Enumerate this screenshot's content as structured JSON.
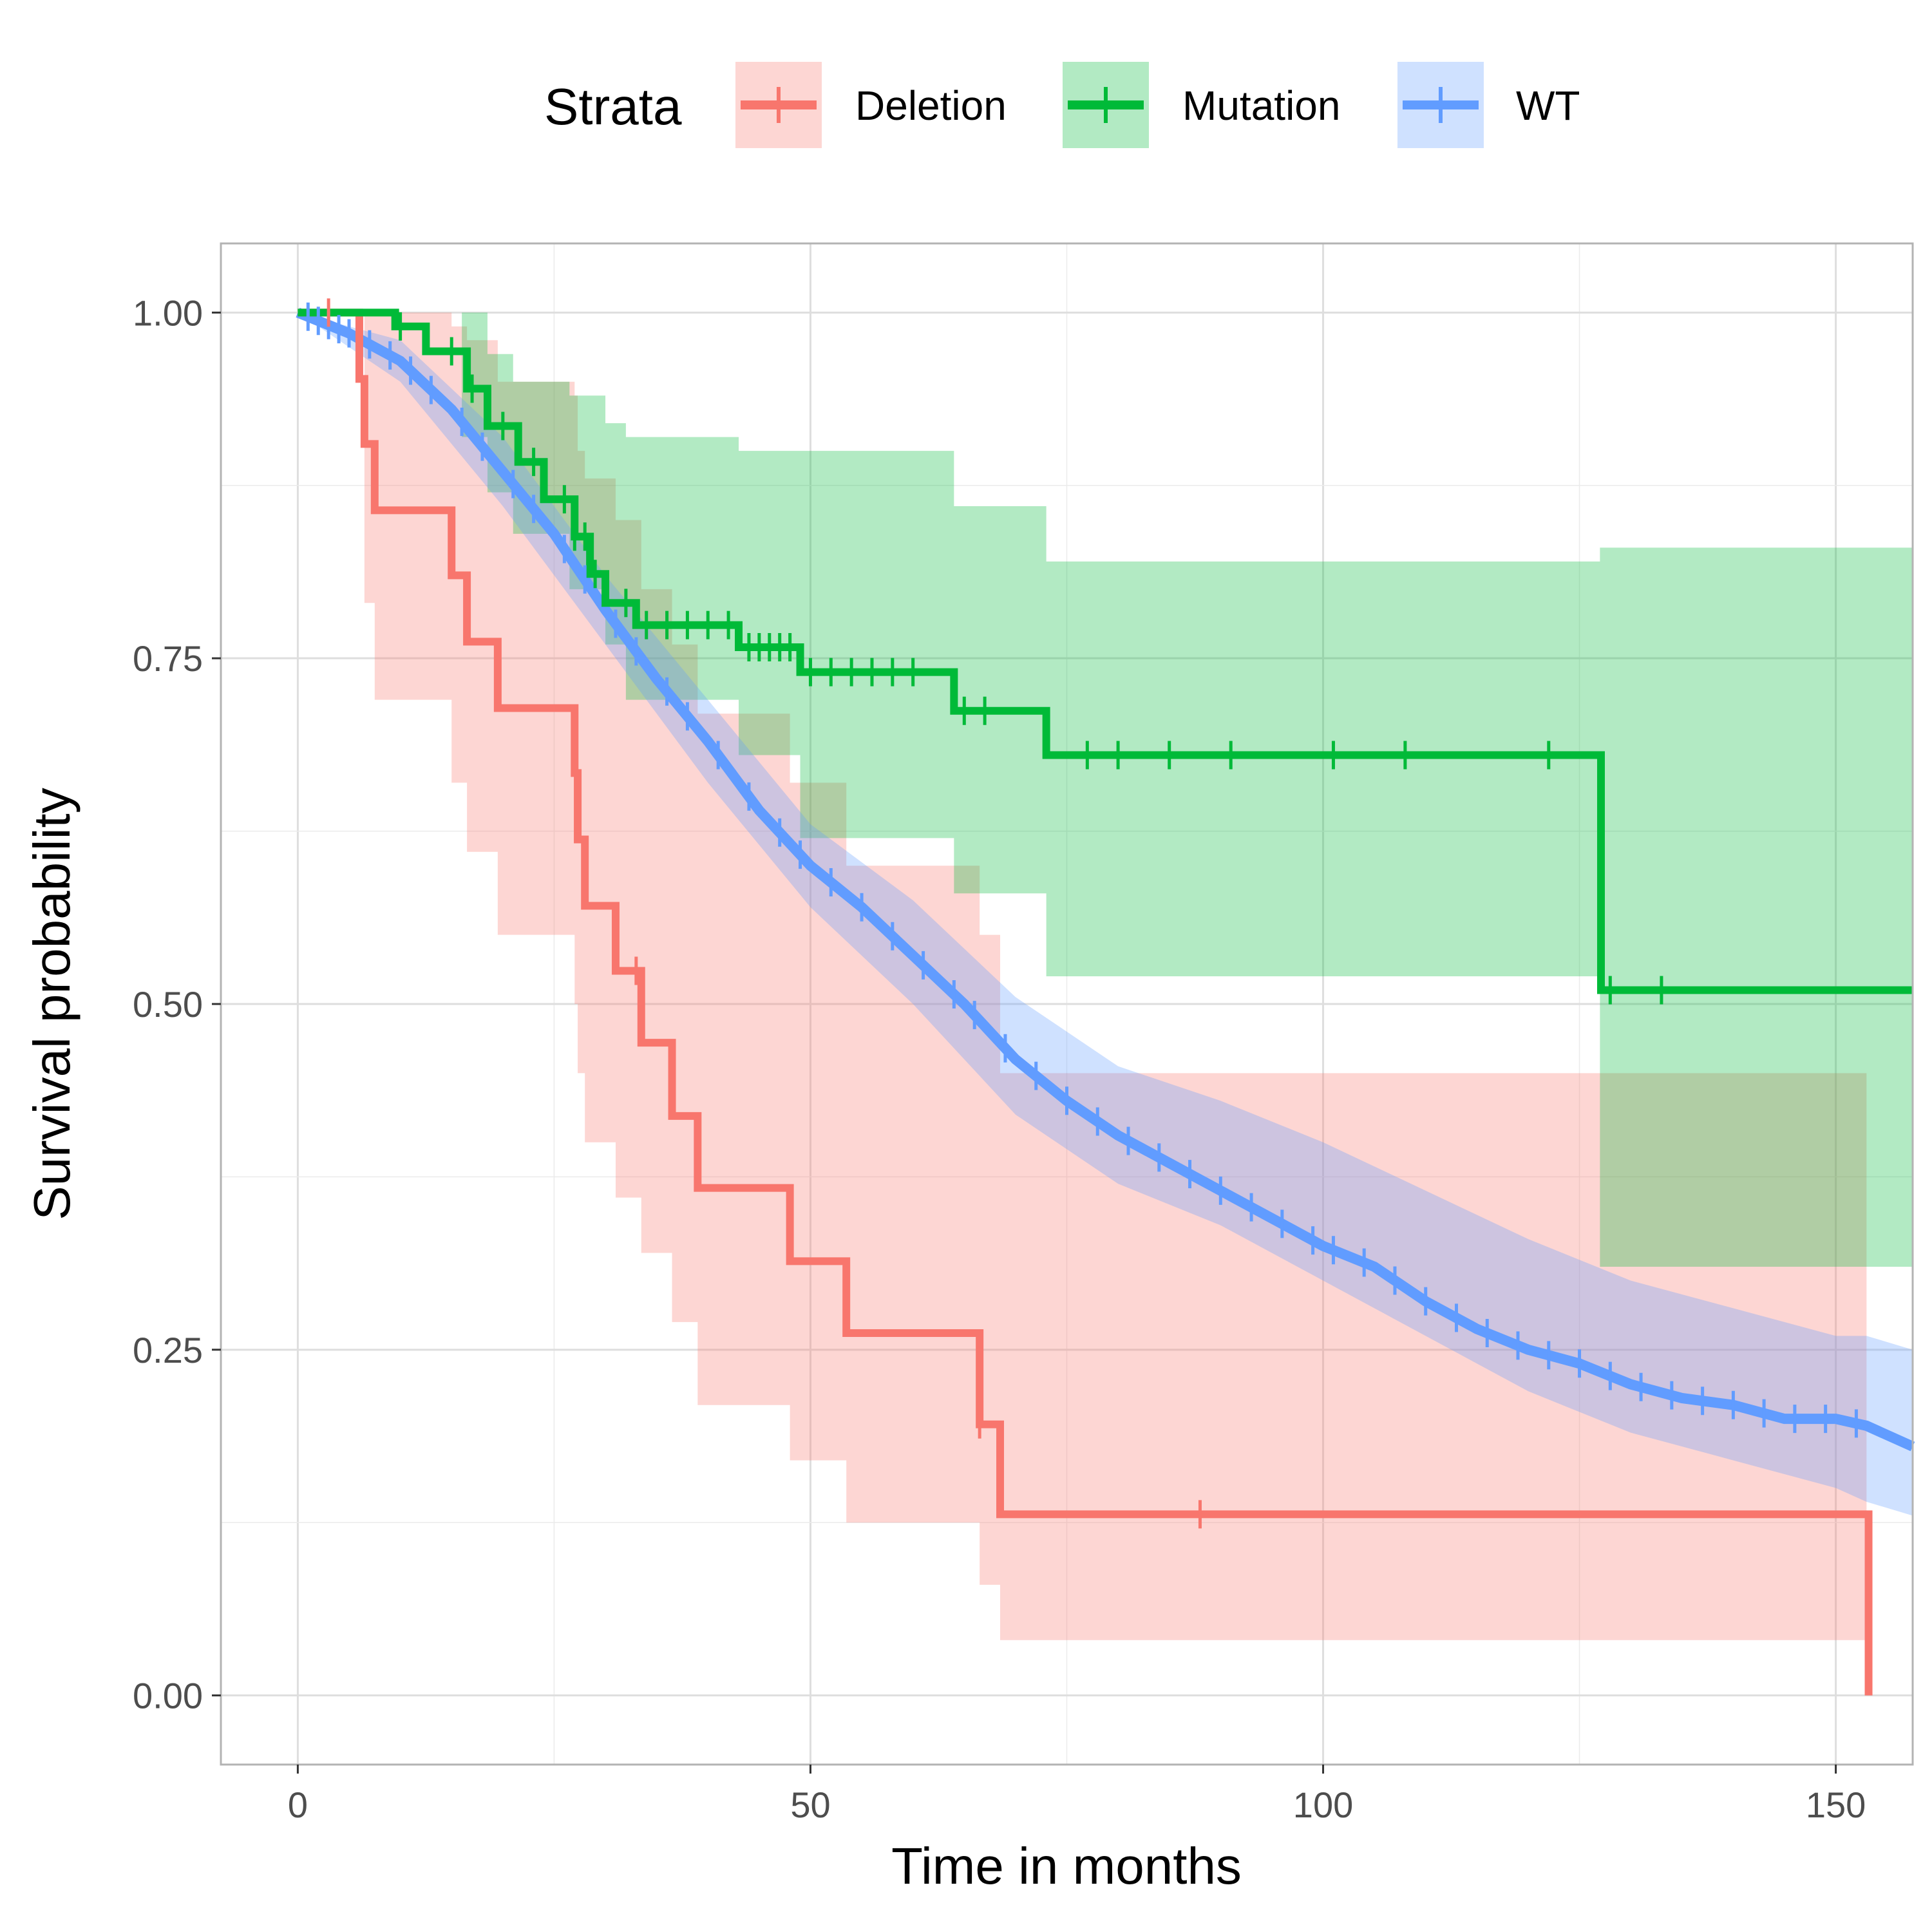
{
  "chart_data": {
    "type": "line",
    "subtype": "kaplan-meier-survival",
    "xlabel": "Time in months",
    "ylabel": "Survival probability",
    "xlim": [
      -7.5,
      157.5
    ],
    "ylim": [
      -0.05,
      1.05
    ],
    "x_ticks": [
      0,
      50,
      100,
      150
    ],
    "x_tick_labels": [
      "0",
      "50",
      "100",
      "150"
    ],
    "y_ticks": [
      0,
      0.25,
      0.5,
      0.75,
      1.0
    ],
    "y_tick_labels": [
      "0.00",
      "0.25",
      "0.50",
      "0.75",
      "1.00"
    ],
    "grid": true,
    "legend": {
      "title": "Strata",
      "position": "top",
      "entries": [
        "Deletion",
        "Mutation",
        "WT"
      ]
    },
    "series": [
      {
        "name": "Deletion",
        "color": "#F8766D",
        "steps": [
          [
            0,
            1.0
          ],
          [
            6,
            0.952
          ],
          [
            6.5,
            0.905
          ],
          [
            7.5,
            0.857
          ],
          [
            15,
            0.81
          ],
          [
            16.5,
            0.762
          ],
          [
            19.5,
            0.714
          ],
          [
            27,
            0.667
          ],
          [
            27.3,
            0.619
          ],
          [
            28,
            0.571
          ],
          [
            31,
            0.524
          ],
          [
            33.5,
            0.472
          ],
          [
            36.5,
            0.419
          ],
          [
            39,
            0.367
          ],
          [
            48,
            0.314
          ],
          [
            53.5,
            0.262
          ],
          [
            66.5,
            0.196
          ],
          [
            68.5,
            0.131
          ],
          [
            153,
            0.131
          ],
          [
            153.2,
            0.0
          ]
        ],
        "ci_upper": [
          [
            0,
            1.0
          ],
          [
            6.5,
            1.0
          ],
          [
            7.5,
            1.0
          ],
          [
            15,
            0.99
          ],
          [
            16.5,
            0.98
          ],
          [
            19.5,
            0.95
          ],
          [
            27,
            0.94
          ],
          [
            27.3,
            0.9
          ],
          [
            28,
            0.88
          ],
          [
            31,
            0.85
          ],
          [
            33.5,
            0.8
          ],
          [
            36.5,
            0.76
          ],
          [
            39,
            0.71
          ],
          [
            48,
            0.66
          ],
          [
            53.5,
            0.6
          ],
          [
            66.5,
            0.55
          ],
          [
            68.5,
            0.45
          ],
          [
            153,
            0.45
          ]
        ],
        "ci_lower": [
          [
            0,
            1.0
          ],
          [
            6.5,
            0.79
          ],
          [
            7.5,
            0.72
          ],
          [
            15,
            0.66
          ],
          [
            16.5,
            0.61
          ],
          [
            19.5,
            0.55
          ],
          [
            27,
            0.5
          ],
          [
            27.3,
            0.45
          ],
          [
            28,
            0.4
          ],
          [
            31,
            0.36
          ],
          [
            33.5,
            0.32
          ],
          [
            36.5,
            0.27
          ],
          [
            39,
            0.21
          ],
          [
            48,
            0.17
          ],
          [
            53.5,
            0.125
          ],
          [
            66.5,
            0.08
          ],
          [
            68.5,
            0.04
          ],
          [
            153,
            0.04
          ]
        ],
        "censor_times": [
          3,
          33,
          66.5,
          88
        ]
      },
      {
        "name": "Mutation",
        "color": "#00BA38",
        "steps": [
          [
            0,
            1.0
          ],
          [
            9.5,
            0.99
          ],
          [
            12.5,
            0.972
          ],
          [
            16.5,
            0.945
          ],
          [
            18.5,
            0.918
          ],
          [
            21.5,
            0.892
          ],
          [
            24,
            0.865
          ],
          [
            27,
            0.838
          ],
          [
            28.5,
            0.811
          ],
          [
            30,
            0.79
          ],
          [
            33,
            0.774
          ],
          [
            43,
            0.758
          ],
          [
            49,
            0.74
          ],
          [
            64,
            0.712
          ],
          [
            73,
            0.68
          ],
          [
            127,
            0.68
          ],
          [
            127.1,
            0.51
          ],
          [
            157.5,
            0.51
          ]
        ],
        "ci_upper": [
          [
            0,
            1.0
          ],
          [
            16,
            1.0
          ],
          [
            18.5,
            0.97
          ],
          [
            21,
            0.95
          ],
          [
            26.5,
            0.94
          ],
          [
            30,
            0.92
          ],
          [
            32,
            0.91
          ],
          [
            43,
            0.9
          ],
          [
            49,
            0.9
          ],
          [
            64,
            0.86
          ],
          [
            73,
            0.82
          ],
          [
            127,
            0.83
          ],
          [
            157.5,
            0.83
          ]
        ],
        "ci_lower": [
          [
            0,
            1.0
          ],
          [
            16,
            0.91
          ],
          [
            18.5,
            0.87
          ],
          [
            21,
            0.84
          ],
          [
            26.5,
            0.8
          ],
          [
            30,
            0.76
          ],
          [
            32,
            0.72
          ],
          [
            43,
            0.68
          ],
          [
            49,
            0.62
          ],
          [
            64,
            0.58
          ],
          [
            73,
            0.52
          ],
          [
            127,
            0.31
          ],
          [
            157.5,
            0.31
          ]
        ],
        "censor_times": [
          10,
          15,
          17,
          20,
          23,
          26,
          27,
          28,
          29,
          32,
          34,
          36,
          38,
          40,
          42,
          44,
          45,
          46,
          47,
          48,
          50,
          52,
          54,
          56,
          58,
          60,
          65,
          67,
          77,
          80,
          85,
          91,
          101,
          108,
          122,
          128,
          133
        ]
      },
      {
        "name": "WT",
        "color": "#619CFF",
        "points": [
          [
            0,
            1.0
          ],
          [
            5,
            0.985
          ],
          [
            10,
            0.965
          ],
          [
            15,
            0.93
          ],
          [
            20,
            0.885
          ],
          [
            25,
            0.84
          ],
          [
            30,
            0.785
          ],
          [
            35,
            0.735
          ],
          [
            40,
            0.69
          ],
          [
            45,
            0.64
          ],
          [
            50,
            0.6
          ],
          [
            55,
            0.57
          ],
          [
            60,
            0.535
          ],
          [
            65,
            0.5
          ],
          [
            70,
            0.46
          ],
          [
            75,
            0.43
          ],
          [
            80,
            0.405
          ],
          [
            85,
            0.385
          ],
          [
            90,
            0.365
          ],
          [
            95,
            0.345
          ],
          [
            100,
            0.325
          ],
          [
            105,
            0.31
          ],
          [
            110,
            0.285
          ],
          [
            115,
            0.265
          ],
          [
            120,
            0.25
          ],
          [
            125,
            0.24
          ],
          [
            130,
            0.225
          ],
          [
            135,
            0.215
          ],
          [
            140,
            0.21
          ],
          [
            145,
            0.2
          ],
          [
            150,
            0.2
          ],
          [
            153,
            0.195
          ],
          [
            157.5,
            0.18
          ]
        ],
        "ci_upper": [
          [
            0,
            1.0
          ],
          [
            10,
            0.98
          ],
          [
            20,
            0.91
          ],
          [
            30,
            0.81
          ],
          [
            40,
            0.72
          ],
          [
            50,
            0.63
          ],
          [
            60,
            0.575
          ],
          [
            70,
            0.505
          ],
          [
            80,
            0.455
          ],
          [
            90,
            0.43
          ],
          [
            100,
            0.4
          ],
          [
            110,
            0.365
          ],
          [
            120,
            0.33
          ],
          [
            130,
            0.3
          ],
          [
            140,
            0.28
          ],
          [
            150,
            0.26
          ],
          [
            153,
            0.26
          ],
          [
            157.5,
            0.25
          ]
        ],
        "ci_lower": [
          [
            0,
            1.0
          ],
          [
            10,
            0.95
          ],
          [
            20,
            0.86
          ],
          [
            30,
            0.76
          ],
          [
            40,
            0.66
          ],
          [
            50,
            0.57
          ],
          [
            60,
            0.5
          ],
          [
            70,
            0.42
          ],
          [
            80,
            0.37
          ],
          [
            90,
            0.34
          ],
          [
            100,
            0.3
          ],
          [
            110,
            0.26
          ],
          [
            120,
            0.22
          ],
          [
            130,
            0.19
          ],
          [
            140,
            0.17
          ],
          [
            150,
            0.15
          ],
          [
            153,
            0.14
          ],
          [
            157.5,
            0.13
          ]
        ],
        "censor_times": [
          1,
          2,
          3,
          4,
          5,
          7,
          9,
          11,
          13,
          16,
          18,
          21,
          23,
          26,
          28,
          31,
          33,
          36,
          38,
          41,
          44,
          47,
          49,
          52,
          55,
          58,
          61,
          64,
          66,
          69,
          72,
          75,
          78,
          81,
          84,
          87,
          90,
          93,
          96,
          99,
          101,
          104,
          107,
          110,
          113,
          116,
          119,
          122,
          125,
          128,
          131,
          134,
          137,
          140,
          143,
          146,
          149,
          152
        ]
      }
    ]
  }
}
